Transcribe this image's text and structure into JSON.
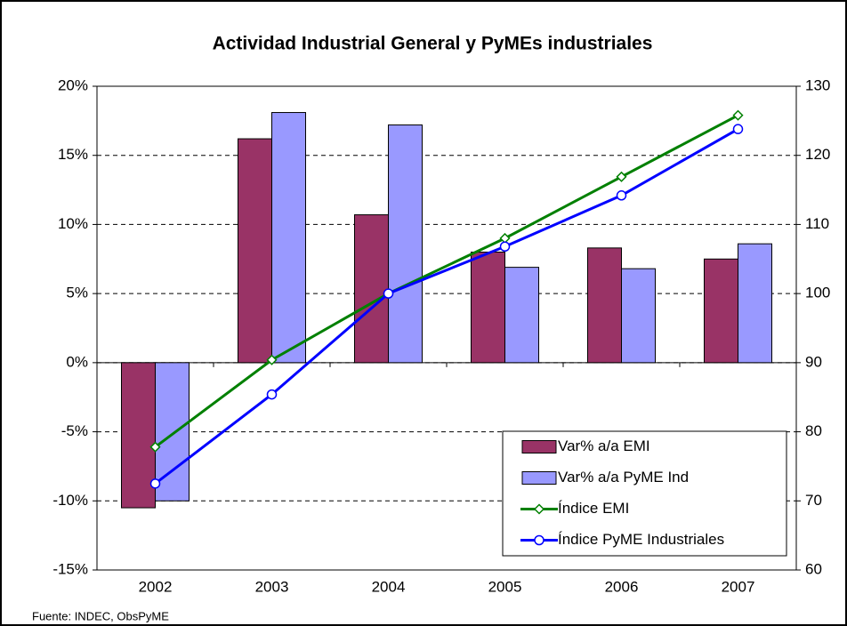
{
  "chart_data": {
    "type": "bar",
    "title": "Actividad Industrial General y PyMEs industriales",
    "note": "Fuente: INDEC, ObsPyME",
    "categories": [
      "2002",
      "2003",
      "2004",
      "2005",
      "2006",
      "2007"
    ],
    "series": [
      {
        "name": "Var% a/a EMI",
        "color": "#993366",
        "values": [
          -10.5,
          16.2,
          10.7,
          8.0,
          8.3,
          7.5
        ]
      },
      {
        "name": "Var% a/a PyME Ind",
        "color": "#9999ff",
        "values": [
          -10.0,
          18.1,
          17.2,
          6.9,
          6.8,
          8.6
        ]
      },
      {
        "name": "Índice EMI",
        "color": "#008000",
        "axis": "y2",
        "marker": "diamond",
        "values": [
          77.8,
          90.4,
          100,
          108,
          116.9,
          125.8
        ]
      },
      {
        "name": "Índice PyME Industriales",
        "color": "#0000ff",
        "axis": "y2",
        "marker": "circle",
        "values": [
          72.5,
          85.4,
          100,
          106.8,
          114.2,
          123.8
        ]
      }
    ],
    "ylim": [
      -15,
      20
    ],
    "yticks": [
      {
        "value": -15,
        "label": "-15%"
      },
      {
        "value": -10,
        "label": "-10%"
      },
      {
        "value": -5,
        "label": "-5%"
      },
      {
        "value": 0,
        "label": "0%"
      },
      {
        "value": 5,
        "label": "5%"
      },
      {
        "value": 10,
        "label": "10%"
      },
      {
        "value": 15,
        "label": "15%"
      },
      {
        "value": 20,
        "label": "20%"
      }
    ],
    "y2lim": [
      60,
      130
    ],
    "y2ticks": [
      60,
      70,
      80,
      90,
      100,
      110,
      120,
      130
    ],
    "grid": true,
    "legend": "lower-right"
  }
}
